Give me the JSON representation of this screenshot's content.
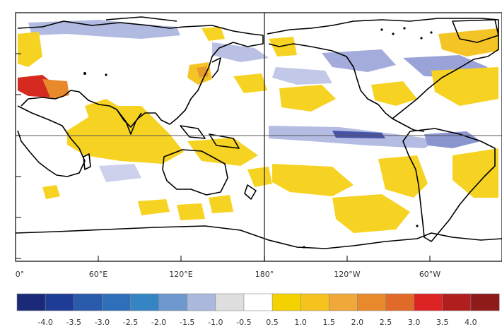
{
  "map": {
    "lat_labels": [
      "",
      "",
      "",
      "",
      "",
      "",
      ""
    ],
    "lon_labels": [
      "0°",
      "60°E",
      "120°E",
      "180°",
      "120°W",
      "60°W"
    ]
  },
  "colorbar": {
    "labels": [
      "-4.0",
      "-3.5",
      "-3.0",
      "-2.5",
      "-2.0",
      "-1.5",
      "-1.0",
      "-0.5",
      "0.5",
      "1.0",
      "1.5",
      "2.0",
      "2.5",
      "3.0",
      "3.5",
      "4.0"
    ],
    "colors": [
      "#1a2a78",
      "#1e3c96",
      "#2a5aaa",
      "#2f6fba",
      "#3584c4",
      "#6f98ce",
      "#a9b8dc",
      "#dedede",
      "#ffffff",
      "#f4d200",
      "#f6c21e",
      "#f0a83a",
      "#e88a2c",
      "#e06a28",
      "#dd2424",
      "#b01e1e",
      "#8f1a1a"
    ]
  },
  "colors": {
    "land_outline": "#000000",
    "warm_light": "#f7d21c",
    "warm_mid": "#f2aa28",
    "warm_hot": "#d42a1f",
    "cool_light": "#c6cbe7",
    "cool_mid": "#8c98cf",
    "cool_dark": "#2f3d8e"
  }
}
